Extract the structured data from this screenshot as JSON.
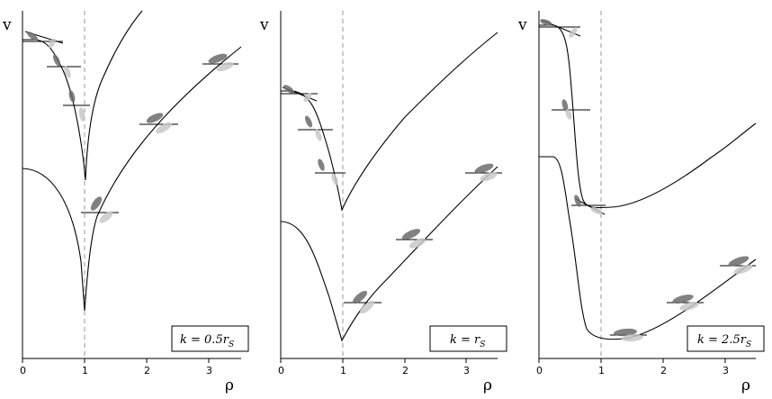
{
  "axes": {
    "y_label": "v",
    "x_label": "ρ",
    "x_ticks": [
      "0",
      "1",
      "2",
      "3"
    ]
  },
  "panels": [
    {
      "id": "panel-1",
      "k_label": "k = 0.5r",
      "k_sub": "S"
    },
    {
      "id": "panel-2",
      "k_label": "k = r",
      "k_sub": "S"
    },
    {
      "id": "panel-3",
      "k_label": "k = 2.5r",
      "k_sub": "S"
    }
  ],
  "colors": {
    "curve": "#000000",
    "guide": "#999999",
    "ellipse_dark": "#6b6b6b",
    "ellipse_light": "#c8c8c8"
  }
}
